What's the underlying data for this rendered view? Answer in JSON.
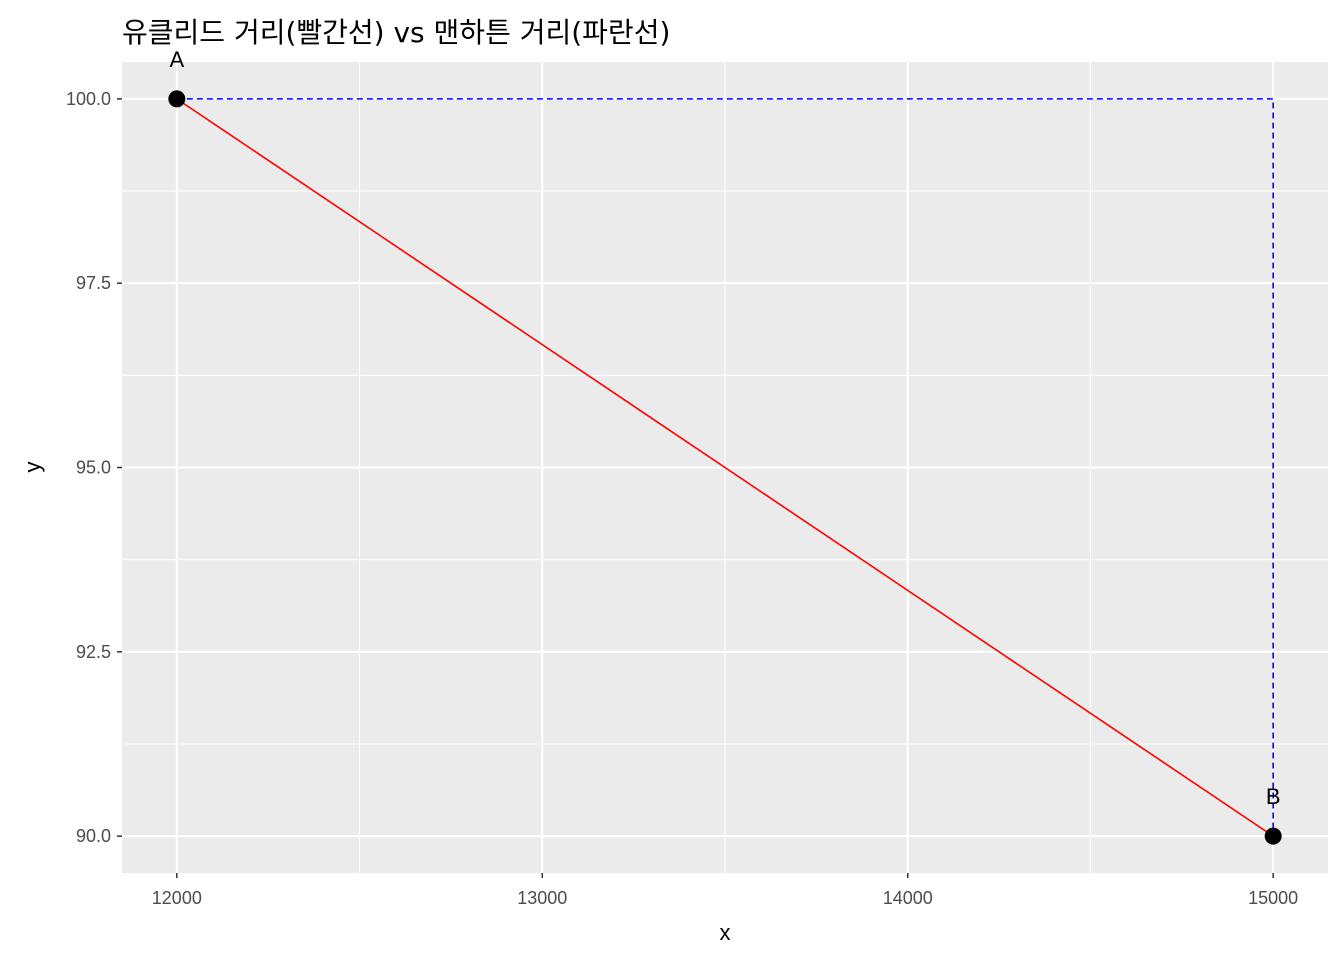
{
  "chart_data": {
    "type": "line",
    "title": "유클리드 거리(빨간선) vs 맨하튼 거리(파란선)",
    "xlabel": "x",
    "ylabel": "y",
    "xlim": [
      11850,
      15150
    ],
    "ylim": [
      89.5,
      100.5
    ],
    "x_ticks": [
      12000,
      13000,
      14000,
      15000
    ],
    "x_tick_labels": [
      "12000",
      "13000",
      "14000",
      "15000"
    ],
    "x_minor_ticks": [
      12500,
      13500,
      14500
    ],
    "y_ticks": [
      90.0,
      92.5,
      95.0,
      97.5,
      100.0
    ],
    "y_tick_labels": [
      "90.0",
      "92.5",
      "95.0",
      "97.5",
      "100.0"
    ],
    "y_minor_ticks": [
      91.25,
      93.75,
      96.25,
      98.75
    ],
    "grid": true,
    "background": "#ebebeb",
    "points": [
      {
        "label": "A",
        "x": 12000,
        "y": 100
      },
      {
        "label": "B",
        "x": 15000,
        "y": 90
      }
    ],
    "series": [
      {
        "style": "solid",
        "color": "#ff0000",
        "x": [
          12000,
          15000
        ],
        "y": [
          100,
          90
        ]
      },
      {
        "style": "dashed",
        "color": "#0000ff",
        "x": [
          12000,
          15000,
          15000
        ],
        "y": [
          100,
          100,
          90
        ]
      }
    ]
  }
}
